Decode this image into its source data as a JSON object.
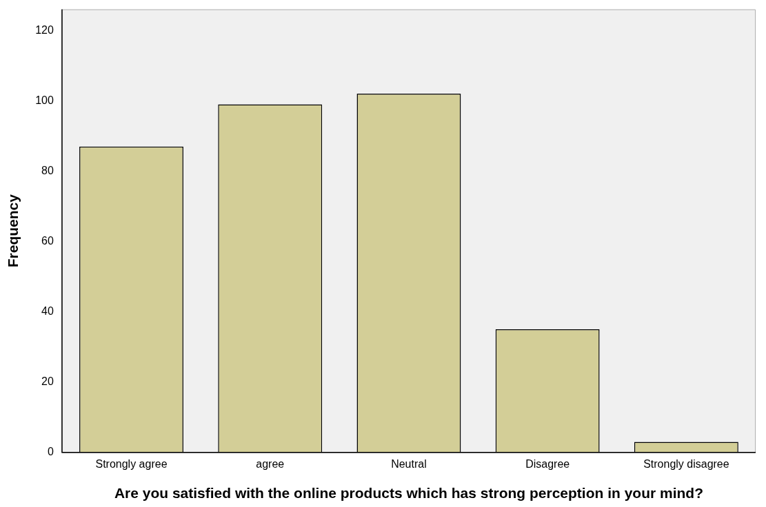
{
  "chart_data": {
    "type": "bar",
    "xlabel": "Are you satisfied with the online products which has strong perception in your mind?",
    "ylabel": "Frequency",
    "categories": [
      "Strongly agree",
      "agree",
      "Neutral",
      "Disagree",
      "Strongly disagree"
    ],
    "values": [
      87,
      99,
      102,
      35,
      3
    ],
    "color": "#d3ce97",
    "ylim": [
      0,
      126
    ],
    "yticks": [
      0,
      20,
      40,
      60,
      80,
      100,
      120
    ],
    "grid": false,
    "legend": false
  }
}
